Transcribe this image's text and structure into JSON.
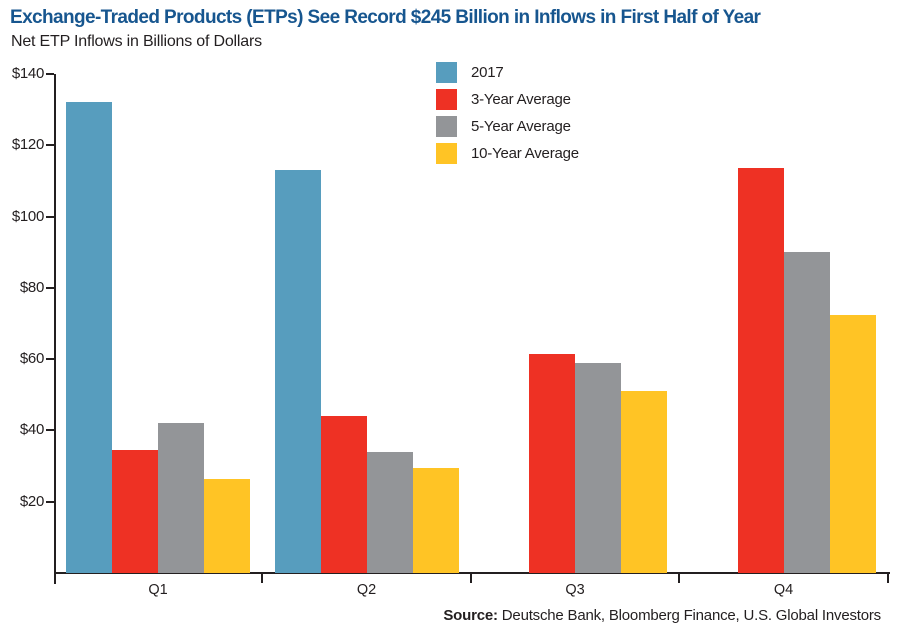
{
  "header": {
    "title": "Exchange-Traded Products (ETPs) See Record $245 Billion in Inflows in First Half of Year",
    "subtitle": "Net ETP Inflows in Billions of Dollars"
  },
  "footer": {
    "source_label": "Source:",
    "source_text": " Deutsche Bank, Bloomberg Finance, U.S. Global Investors"
  },
  "colors": {
    "title": "#17568F",
    "axis": "#231F20",
    "text": "#231F20",
    "background": "#FFFFFF",
    "series_2017": "#579DBE",
    "series_3yr": "#EE3124",
    "series_5yr": "#939598",
    "series_10yr": "#FFC425"
  },
  "chart_data": {
    "type": "bar",
    "title": "Exchange-Traded Products (ETPs) See Record $245 Billion in Inflows in First Half of Year",
    "subtitle": "Net ETP Inflows in Billions of Dollars",
    "categories": [
      "Q1",
      "Q2",
      "Q3",
      "Q4"
    ],
    "series": [
      {
        "name": "2017",
        "color": "#579DBE",
        "values": [
          132,
          113,
          null,
          null
        ]
      },
      {
        "name": "3-Year Average",
        "color": "#EE3124",
        "values": [
          34.5,
          44,
          61.5,
          113.5
        ]
      },
      {
        "name": "5-Year Average",
        "color": "#939598",
        "values": [
          42,
          34,
          59,
          90
        ]
      },
      {
        "name": "10-Year Average",
        "color": "#FFC425",
        "values": [
          26.5,
          29.5,
          51,
          72.5
        ]
      }
    ],
    "xlabel": "",
    "ylabel": "Net ETP Inflows in Billions of Dollars",
    "ylim": [
      0,
      140
    ],
    "y_tick_values": [
      20,
      40,
      60,
      80,
      100,
      120,
      140
    ],
    "y_tick_labels": [
      "$20",
      "$40",
      "$60",
      "$80",
      "$100",
      "$120",
      "$140"
    ],
    "grid": false,
    "legend_position": "top-center",
    "source": "Source: Deutsche Bank, Bloomberg Finance, U.S. Global Investors"
  }
}
